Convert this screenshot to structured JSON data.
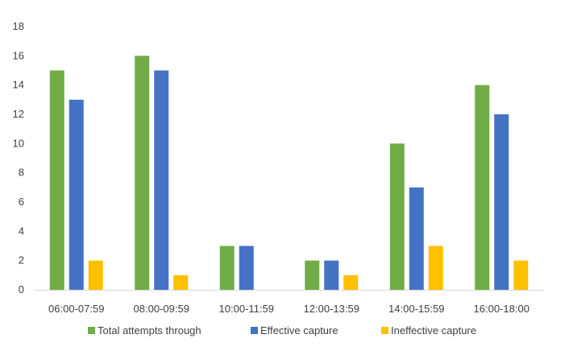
{
  "chart_data": {
    "type": "bar",
    "categories": [
      "06:00-07:59",
      "08:00-09:59",
      "10:00-11:59",
      "12:00-13:59",
      "14:00-15:59",
      "16:00-18:00"
    ],
    "series": [
      {
        "name": "Total attempts through",
        "values": [
          15,
          16,
          3,
          2,
          10,
          14
        ],
        "color": "#70AD47"
      },
      {
        "name": "Effective capture",
        "values": [
          13,
          15,
          3,
          2,
          7,
          12
        ],
        "color": "#4472C4"
      },
      {
        "name": "Ineffective capture",
        "values": [
          2,
          1,
          0,
          1,
          3,
          2
        ],
        "color": "#FFC000"
      }
    ],
    "ylim": [
      0,
      18
    ],
    "yticks": [
      0,
      2,
      4,
      6,
      8,
      10,
      12,
      14,
      16,
      18
    ],
    "grid": false,
    "legend_position": "bottom"
  }
}
